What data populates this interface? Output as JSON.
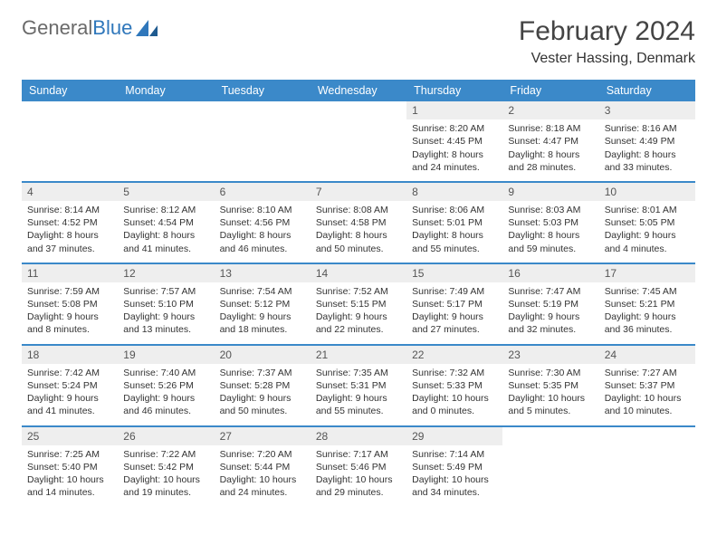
{
  "logo": {
    "text_part1": "General",
    "text_part2": "Blue"
  },
  "header": {
    "title": "February 2024",
    "location": "Vester Hassing, Denmark"
  },
  "colors": {
    "header_bg": "#3b89c9",
    "header_text": "#ffffff",
    "daynum_bg": "#eeeeee",
    "text": "#333333"
  },
  "day_headers": [
    "Sunday",
    "Monday",
    "Tuesday",
    "Wednesday",
    "Thursday",
    "Friday",
    "Saturday"
  ],
  "weeks": [
    [
      null,
      null,
      null,
      null,
      {
        "n": "1",
        "sr": "Sunrise: 8:20 AM",
        "ss": "Sunset: 4:45 PM",
        "d1": "Daylight: 8 hours",
        "d2": "and 24 minutes."
      },
      {
        "n": "2",
        "sr": "Sunrise: 8:18 AM",
        "ss": "Sunset: 4:47 PM",
        "d1": "Daylight: 8 hours",
        "d2": "and 28 minutes."
      },
      {
        "n": "3",
        "sr": "Sunrise: 8:16 AM",
        "ss": "Sunset: 4:49 PM",
        "d1": "Daylight: 8 hours",
        "d2": "and 33 minutes."
      }
    ],
    [
      {
        "n": "4",
        "sr": "Sunrise: 8:14 AM",
        "ss": "Sunset: 4:52 PM",
        "d1": "Daylight: 8 hours",
        "d2": "and 37 minutes."
      },
      {
        "n": "5",
        "sr": "Sunrise: 8:12 AM",
        "ss": "Sunset: 4:54 PM",
        "d1": "Daylight: 8 hours",
        "d2": "and 41 minutes."
      },
      {
        "n": "6",
        "sr": "Sunrise: 8:10 AM",
        "ss": "Sunset: 4:56 PM",
        "d1": "Daylight: 8 hours",
        "d2": "and 46 minutes."
      },
      {
        "n": "7",
        "sr": "Sunrise: 8:08 AM",
        "ss": "Sunset: 4:58 PM",
        "d1": "Daylight: 8 hours",
        "d2": "and 50 minutes."
      },
      {
        "n": "8",
        "sr": "Sunrise: 8:06 AM",
        "ss": "Sunset: 5:01 PM",
        "d1": "Daylight: 8 hours",
        "d2": "and 55 minutes."
      },
      {
        "n": "9",
        "sr": "Sunrise: 8:03 AM",
        "ss": "Sunset: 5:03 PM",
        "d1": "Daylight: 8 hours",
        "d2": "and 59 minutes."
      },
      {
        "n": "10",
        "sr": "Sunrise: 8:01 AM",
        "ss": "Sunset: 5:05 PM",
        "d1": "Daylight: 9 hours",
        "d2": "and 4 minutes."
      }
    ],
    [
      {
        "n": "11",
        "sr": "Sunrise: 7:59 AM",
        "ss": "Sunset: 5:08 PM",
        "d1": "Daylight: 9 hours",
        "d2": "and 8 minutes."
      },
      {
        "n": "12",
        "sr": "Sunrise: 7:57 AM",
        "ss": "Sunset: 5:10 PM",
        "d1": "Daylight: 9 hours",
        "d2": "and 13 minutes."
      },
      {
        "n": "13",
        "sr": "Sunrise: 7:54 AM",
        "ss": "Sunset: 5:12 PM",
        "d1": "Daylight: 9 hours",
        "d2": "and 18 minutes."
      },
      {
        "n": "14",
        "sr": "Sunrise: 7:52 AM",
        "ss": "Sunset: 5:15 PM",
        "d1": "Daylight: 9 hours",
        "d2": "and 22 minutes."
      },
      {
        "n": "15",
        "sr": "Sunrise: 7:49 AM",
        "ss": "Sunset: 5:17 PM",
        "d1": "Daylight: 9 hours",
        "d2": "and 27 minutes."
      },
      {
        "n": "16",
        "sr": "Sunrise: 7:47 AM",
        "ss": "Sunset: 5:19 PM",
        "d1": "Daylight: 9 hours",
        "d2": "and 32 minutes."
      },
      {
        "n": "17",
        "sr": "Sunrise: 7:45 AM",
        "ss": "Sunset: 5:21 PM",
        "d1": "Daylight: 9 hours",
        "d2": "and 36 minutes."
      }
    ],
    [
      {
        "n": "18",
        "sr": "Sunrise: 7:42 AM",
        "ss": "Sunset: 5:24 PM",
        "d1": "Daylight: 9 hours",
        "d2": "and 41 minutes."
      },
      {
        "n": "19",
        "sr": "Sunrise: 7:40 AM",
        "ss": "Sunset: 5:26 PM",
        "d1": "Daylight: 9 hours",
        "d2": "and 46 minutes."
      },
      {
        "n": "20",
        "sr": "Sunrise: 7:37 AM",
        "ss": "Sunset: 5:28 PM",
        "d1": "Daylight: 9 hours",
        "d2": "and 50 minutes."
      },
      {
        "n": "21",
        "sr": "Sunrise: 7:35 AM",
        "ss": "Sunset: 5:31 PM",
        "d1": "Daylight: 9 hours",
        "d2": "and 55 minutes."
      },
      {
        "n": "22",
        "sr": "Sunrise: 7:32 AM",
        "ss": "Sunset: 5:33 PM",
        "d1": "Daylight: 10 hours",
        "d2": "and 0 minutes."
      },
      {
        "n": "23",
        "sr": "Sunrise: 7:30 AM",
        "ss": "Sunset: 5:35 PM",
        "d1": "Daylight: 10 hours",
        "d2": "and 5 minutes."
      },
      {
        "n": "24",
        "sr": "Sunrise: 7:27 AM",
        "ss": "Sunset: 5:37 PM",
        "d1": "Daylight: 10 hours",
        "d2": "and 10 minutes."
      }
    ],
    [
      {
        "n": "25",
        "sr": "Sunrise: 7:25 AM",
        "ss": "Sunset: 5:40 PM",
        "d1": "Daylight: 10 hours",
        "d2": "and 14 minutes."
      },
      {
        "n": "26",
        "sr": "Sunrise: 7:22 AM",
        "ss": "Sunset: 5:42 PM",
        "d1": "Daylight: 10 hours",
        "d2": "and 19 minutes."
      },
      {
        "n": "27",
        "sr": "Sunrise: 7:20 AM",
        "ss": "Sunset: 5:44 PM",
        "d1": "Daylight: 10 hours",
        "d2": "and 24 minutes."
      },
      {
        "n": "28",
        "sr": "Sunrise: 7:17 AM",
        "ss": "Sunset: 5:46 PM",
        "d1": "Daylight: 10 hours",
        "d2": "and 29 minutes."
      },
      {
        "n": "29",
        "sr": "Sunrise: 7:14 AM",
        "ss": "Sunset: 5:49 PM",
        "d1": "Daylight: 10 hours",
        "d2": "and 34 minutes."
      },
      null,
      null
    ]
  ]
}
